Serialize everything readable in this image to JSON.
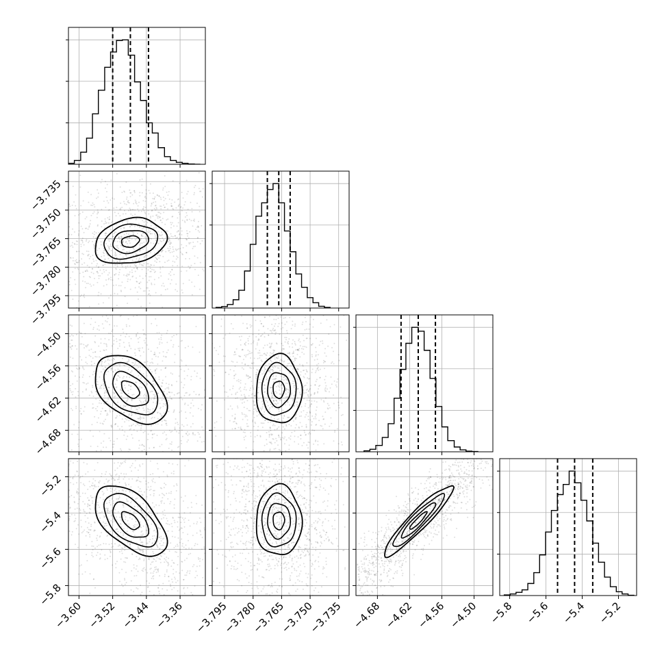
{
  "chart_data": {
    "type": "corner",
    "grid": true,
    "quantile_style": "dashed",
    "parameters": [
      {
        "range": [
          -3.625,
          -3.3
        ],
        "ticks": [
          -3.6,
          -3.52,
          -3.44,
          -3.36
        ],
        "tick_labels": [
          "−3.60",
          "−3.52",
          "−3.44",
          "−3.36"
        ],
        "quantiles": [
          -3.52,
          -3.478,
          -3.435
        ],
        "hist_bins": [
          -3.625,
          -3.611,
          -3.596,
          -3.582,
          -3.568,
          -3.554,
          -3.539,
          -3.525,
          -3.511,
          -3.497,
          -3.483,
          -3.468,
          -3.454,
          -3.44,
          -3.426,
          -3.412,
          -3.397,
          -3.383,
          -3.369,
          -3.355,
          -3.341,
          -3.326,
          -3.312
        ],
        "hist_counts": [
          3,
          12,
          38,
          82,
          158,
          232,
          304,
          352,
          388,
          390,
          342,
          258,
          200,
          130,
          98,
          52,
          24,
          12,
          6,
          3,
          1,
          0
        ]
      },
      {
        "range": [
          -3.8015,
          -3.7295
        ],
        "ticks": [
          -3.795,
          -3.78,
          -3.765,
          -3.75,
          -3.735
        ],
        "tick_labels": [
          "−3.795",
          "−3.780",
          "−3.765",
          "−3.750",
          "−3.735"
        ],
        "quantiles": [
          -3.7725,
          -3.7665,
          -3.7605
        ],
        "hist_bins": [
          -3.7995,
          -3.7965,
          -3.7935,
          -3.7905,
          -3.7875,
          -3.7845,
          -3.7815,
          -3.7785,
          -3.7755,
          -3.7725,
          -3.7695,
          -3.7665,
          -3.7635,
          -3.7605,
          -3.7575,
          -3.7545,
          -3.7515,
          -3.7485,
          -3.7455,
          -3.7425,
          -3.7395
        ],
        "hist_counts": [
          2,
          5,
          12,
          28,
          60,
          125,
          215,
          310,
          355,
          400,
          420,
          355,
          260,
          190,
          115,
          70,
          35,
          18,
          6,
          2
        ]
      },
      {
        "range": [
          -4.72,
          -4.465
        ],
        "ticks": [
          -4.68,
          -4.62,
          -4.56,
          -4.5
        ],
        "tick_labels": [
          "−4.68",
          "−4.62",
          "−4.56",
          "−4.50"
        ],
        "quantiles": [
          -4.636,
          -4.604,
          -4.572
        ],
        "hist_bins": [
          -4.705,
          -4.694,
          -4.683,
          -4.671,
          -4.66,
          -4.649,
          -4.638,
          -4.627,
          -4.616,
          -4.604,
          -4.593,
          -4.582,
          -4.571,
          -4.56,
          -4.549,
          -4.537,
          -4.526,
          -4.515,
          -4.504,
          -4.493
        ],
        "hist_counts": [
          3,
          8,
          20,
          45,
          88,
          168,
          258,
          340,
          390,
          378,
          318,
          230,
          142,
          78,
          35,
          15,
          6,
          2,
          1
        ]
      },
      {
        "range": [
          -5.855,
          -5.1
        ],
        "ticks": [
          -5.8,
          -5.6,
          -5.4,
          -5.2
        ],
        "tick_labels": [
          "−5.8",
          "−5.6",
          "−5.4",
          "−5.2"
        ],
        "quantiles": [
          -5.536,
          -5.442,
          -5.342
        ],
        "hist_bins": [
          -5.83,
          -5.797,
          -5.765,
          -5.732,
          -5.7,
          -5.667,
          -5.635,
          -5.602,
          -5.57,
          -5.537,
          -5.505,
          -5.472,
          -5.44,
          -5.407,
          -5.375,
          -5.342,
          -5.31,
          -5.277,
          -5.245,
          -5.212,
          -5.18,
          -5.147,
          -5.115
        ],
        "hist_counts": [
          2,
          5,
          10,
          18,
          38,
          72,
          128,
          200,
          268,
          318,
          350,
          392,
          355,
          300,
          235,
          165,
          105,
          58,
          28,
          12,
          5,
          1
        ]
      }
    ],
    "pairs": [
      {
        "x": 0,
        "y": 1,
        "center": [
          -3.478,
          -3.7665
        ],
        "correlation": 0.2,
        "color_scale": [
          0.95,
          0.78,
          0.5
        ]
      },
      {
        "x": 0,
        "y": 2,
        "center": [
          -3.478,
          -4.604
        ],
        "correlation": -0.45,
        "color_scale": [
          0.95,
          0.78,
          0.5
        ]
      },
      {
        "x": 1,
        "y": 2,
        "center": [
          -3.7665,
          -4.604
        ],
        "correlation": 0.0,
        "color_scale": [
          0.95,
          0.78,
          0.5
        ]
      },
      {
        "x": 0,
        "y": 3,
        "center": [
          -3.478,
          -5.442
        ],
        "correlation": -0.55,
        "color_scale": [
          0.95,
          0.78,
          0.5
        ]
      },
      {
        "x": 1,
        "y": 3,
        "center": [
          -3.7665,
          -5.442
        ],
        "correlation": 0.0,
        "color_scale": [
          0.95,
          0.78,
          0.5
        ]
      },
      {
        "x": 2,
        "y": 3,
        "center": [
          -4.604,
          -5.442
        ],
        "correlation": 0.93,
        "color_scale": [
          0.95,
          0.78,
          0.5
        ]
      }
    ]
  }
}
